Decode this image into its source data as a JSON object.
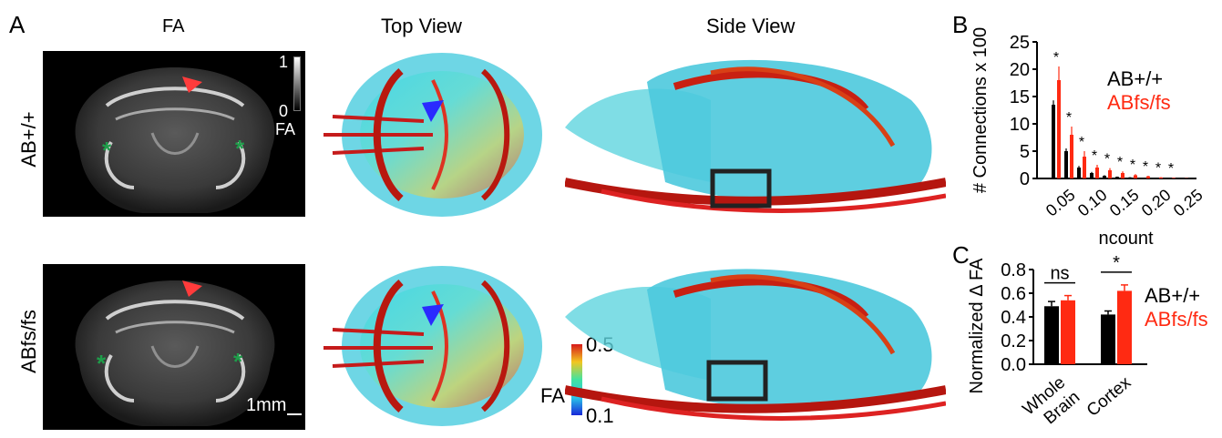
{
  "panel_labels": {
    "a": "A",
    "b": "B",
    "c": "C"
  },
  "column_titles": {
    "fa": "FA",
    "top": "Top View",
    "side": "Side View"
  },
  "row_labels": {
    "wt": "AB+/+",
    "mut": "ABfs/fs"
  },
  "fa_image": {
    "colorbar_max": "1",
    "colorbar_min": "0",
    "colorbar_unit": "FA",
    "scalebar": "1mm",
    "asterisk": "*"
  },
  "tract_colorbar": {
    "label": "FA",
    "max": "0.5",
    "min": "0.1"
  },
  "colors": {
    "wt": "#000000",
    "mut": "#ff2a12",
    "sig_marker": "#1e9e4a",
    "arrow_red": "#ff3b3b",
    "arrow_blue": "#2a2aff"
  },
  "chart_data": [
    {
      "type": "bar",
      "panel": "B",
      "ylabel": "# Connections x 100",
      "xlabel": "ncount",
      "yticks": [
        "0",
        "5",
        "10",
        "15",
        "20",
        "25"
      ],
      "xticks": [
        "0.05",
        "0.10",
        "0.15",
        "0.20",
        "0.25"
      ],
      "ylim": [
        0,
        25
      ],
      "categories": [
        0.03,
        0.05,
        0.07,
        0.09,
        0.11,
        0.13,
        0.15,
        0.17,
        0.19,
        0.21,
        0.23
      ],
      "series": [
        {
          "name": "AB+/+",
          "values": [
            13.5,
            5.0,
            2.0,
            1.0,
            0.5,
            0.3,
            0.2,
            0.1,
            0.05,
            0.02,
            0.01
          ],
          "errors": [
            0.8,
            0.5,
            0.3,
            0.2,
            0.1,
            0.05,
            0.05,
            0.03,
            0.02,
            0.01,
            0.01
          ]
        },
        {
          "name": "ABfs/fs",
          "values": [
            18.0,
            8.0,
            4.0,
            2.0,
            1.5,
            1.0,
            0.6,
            0.4,
            0.2,
            0.1,
            0.05
          ],
          "errors": [
            2.5,
            1.5,
            1.0,
            0.5,
            0.4,
            0.3,
            0.2,
            0.1,
            0.05,
            0.03,
            0.02
          ]
        }
      ],
      "sig_label": "*",
      "legend": [
        "AB+/+",
        "ABfs/fs"
      ]
    },
    {
      "type": "bar",
      "panel": "C",
      "ylabel": "Normalized Δ FA",
      "yticks": [
        "0.0",
        "0.2",
        "0.4",
        "0.6",
        "0.8"
      ],
      "ylim": [
        0,
        0.8
      ],
      "categories": [
        "Whole Brain",
        "Cortex"
      ],
      "series": [
        {
          "name": "AB+/+",
          "values": [
            0.49,
            0.42
          ],
          "errors": [
            0.04,
            0.03
          ]
        },
        {
          "name": "ABfs/fs",
          "values": [
            0.54,
            0.62
          ],
          "errors": [
            0.04,
            0.05
          ]
        }
      ],
      "significance": [
        "ns",
        "*"
      ],
      "legend": [
        "AB+/+",
        "ABfs/fs"
      ]
    }
  ]
}
